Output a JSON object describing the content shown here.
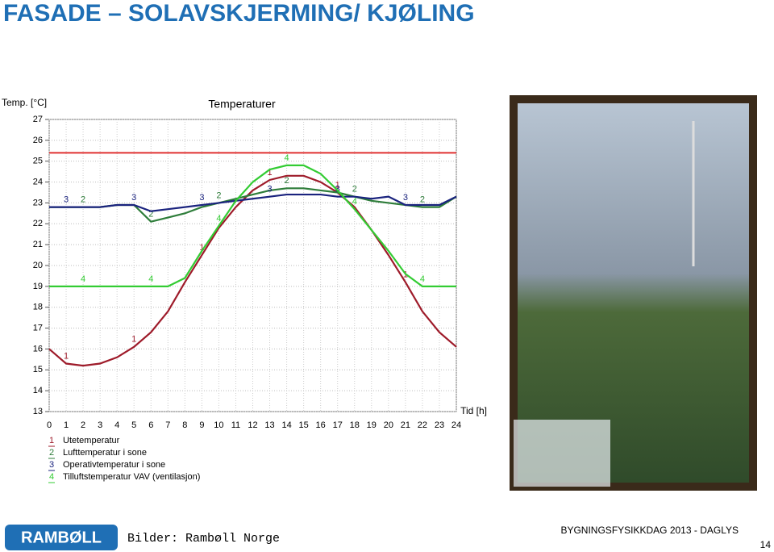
{
  "slide": {
    "title": "FASADE – SOLAVSKJERMING/ KJØLING",
    "logo": "RAMBØLL",
    "credit": "Bilder: Rambøll Norge",
    "event": "BYGNINGSFYSIKKDAG 2013 - DAGLYS",
    "page": "14"
  },
  "chart_data": {
    "type": "line",
    "title": "Temperaturer",
    "y_label": "Temp. [°C]",
    "x_label": "Tid [h]",
    "x": [
      0,
      1,
      2,
      3,
      4,
      5,
      6,
      7,
      8,
      9,
      10,
      11,
      12,
      13,
      14,
      15,
      16,
      17,
      18,
      19,
      20,
      21,
      22,
      23,
      24
    ],
    "xlim": [
      0,
      24
    ],
    "xticks": [
      0,
      1,
      2,
      3,
      4,
      5,
      6,
      7,
      8,
      9,
      10,
      11,
      12,
      13,
      14,
      15,
      16,
      17,
      18,
      19,
      20,
      21,
      22,
      23,
      24
    ],
    "ylim": [
      13,
      27
    ],
    "yticks": [
      13,
      14,
      15,
      16,
      17,
      18,
      19,
      20,
      21,
      22,
      23,
      24,
      25,
      26,
      27
    ],
    "grid": true,
    "reference_line": {
      "value": 25.4,
      "color": "#e03030"
    },
    "series": [
      {
        "name": "Utetemperatur",
        "marker": "1",
        "color": "#9e1b2a",
        "values": [
          16.0,
          15.3,
          15.2,
          15.3,
          15.6,
          16.1,
          16.8,
          17.8,
          19.2,
          20.5,
          21.8,
          22.8,
          23.6,
          24.1,
          24.3,
          24.3,
          24.0,
          23.5,
          22.8,
          21.7,
          20.5,
          19.2,
          17.8,
          16.8,
          16.1
        ]
      },
      {
        "name": "Lufttemperatur i sone",
        "marker": "2",
        "color": "#2e7d3a",
        "values": [
          22.8,
          22.8,
          22.8,
          22.8,
          22.9,
          22.9,
          22.1,
          22.3,
          22.5,
          22.8,
          23.0,
          23.2,
          23.4,
          23.6,
          23.7,
          23.7,
          23.6,
          23.5,
          23.3,
          23.1,
          23.0,
          22.9,
          22.8,
          22.8,
          23.3
        ]
      },
      {
        "name": "Operativtemperatur i sone",
        "marker": "3",
        "color": "#1a237e",
        "values": [
          22.8,
          22.8,
          22.8,
          22.8,
          22.9,
          22.9,
          22.6,
          22.7,
          22.8,
          22.9,
          23.0,
          23.1,
          23.2,
          23.3,
          23.4,
          23.4,
          23.4,
          23.3,
          23.3,
          23.2,
          23.3,
          22.9,
          22.9,
          22.9,
          23.3
        ]
      },
      {
        "name": "Tilluftstemperatur VAV (ventilasjon)",
        "marker": "4",
        "color": "#33cc33",
        "values": [
          19.0,
          19.0,
          19.0,
          19.0,
          19.0,
          19.0,
          19.0,
          19.0,
          19.4,
          20.7,
          21.9,
          23.1,
          24.0,
          24.6,
          24.8,
          24.8,
          24.4,
          23.6,
          22.7,
          21.7,
          20.7,
          19.6,
          19.0,
          19.0,
          19.0
        ]
      }
    ]
  }
}
